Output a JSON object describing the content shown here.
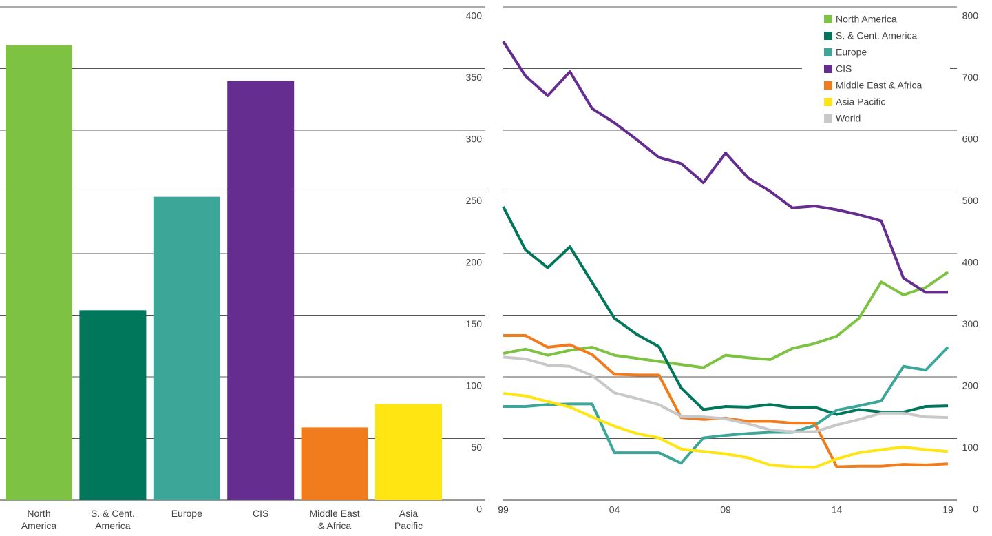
{
  "chart_data": [
    {
      "type": "bar",
      "categories": [
        "North\nAmerica",
        "S. & Cent.\nAmerica",
        "Europe",
        "CIS",
        "Middle East\n& Africa",
        "Asia\nPacific"
      ],
      "values": [
        369,
        154,
        246,
        340,
        59,
        78
      ],
      "colors": [
        "#7dc242",
        "#00775a",
        "#3ca799",
        "#652d8f",
        "#f07c1e",
        "#ffe512"
      ],
      "ylim": [
        0,
        400
      ],
      "yticks": [
        0,
        50,
        100,
        150,
        200,
        250,
        300,
        350,
        400
      ],
      "grid": true
    },
    {
      "type": "line",
      "x": [
        1999,
        2000,
        2001,
        2002,
        2003,
        2004,
        2005,
        2006,
        2007,
        2008,
        2009,
        2010,
        2011,
        2012,
        2013,
        2014,
        2015,
        2016,
        2017,
        2018,
        2019
      ],
      "xlim": [
        1999,
        2019
      ],
      "xticks": [
        {
          "value": 1999,
          "label": "99"
        },
        {
          "value": 2004,
          "label": "04"
        },
        {
          "value": 2009,
          "label": "09"
        },
        {
          "value": 2014,
          "label": "14"
        },
        {
          "value": 2019,
          "label": "19"
        }
      ],
      "ylim": [
        0,
        800
      ],
      "yticks": [
        0,
        100,
        200,
        300,
        400,
        500,
        600,
        700,
        800
      ],
      "grid": true,
      "legend": "top-right",
      "series": [
        {
          "name": "North America",
          "color": "#7dc242",
          "values": [
            238,
            245,
            235,
            243,
            248,
            235,
            230,
            225,
            220,
            215,
            235,
            231,
            228,
            246,
            254,
            266,
            295,
            354,
            333,
            345,
            370
          ]
        },
        {
          "name": "S. & Cent. America",
          "color": "#00775a",
          "values": [
            476,
            406,
            377,
            411,
            353,
            295,
            269,
            249,
            182,
            147,
            152,
            151,
            155,
            150,
            151,
            139,
            147,
            143,
            143,
            152,
            153
          ]
        },
        {
          "name": "Europe",
          "color": "#3ca799",
          "values": [
            152,
            152,
            155,
            156,
            156,
            77,
            77,
            77,
            60,
            101,
            105,
            108,
            110,
            110,
            121,
            146,
            153,
            161,
            217,
            211,
            248
          ]
        },
        {
          "name": "CIS",
          "color": "#652d8f",
          "values": [
            744,
            688,
            656,
            695,
            635,
            612,
            585,
            556,
            546,
            515,
            563,
            523,
            501,
            474,
            477,
            471,
            463,
            453,
            360,
            337,
            337
          ]
        },
        {
          "name": "Middle East & Africa",
          "color": "#f07c1e",
          "values": [
            267,
            267,
            248,
            252,
            236,
            204,
            203,
            203,
            134,
            131,
            133,
            128,
            128,
            125,
            125,
            54,
            55,
            55,
            58,
            57,
            59
          ]
        },
        {
          "name": "Asia Pacific",
          "color": "#ffe512",
          "values": [
            173,
            169,
            160,
            151,
            135,
            120,
            108,
            101,
            83,
            79,
            75,
            69,
            57,
            54,
            53,
            67,
            77,
            82,
            86,
            82,
            79
          ]
        },
        {
          "name": "World",
          "color": "#c8c8c8",
          "values": [
            232,
            229,
            219,
            217,
            202,
            174,
            165,
            155,
            136,
            135,
            132,
            124,
            114,
            111,
            111,
            122,
            131,
            141,
            141,
            135,
            134
          ]
        }
      ]
    }
  ]
}
